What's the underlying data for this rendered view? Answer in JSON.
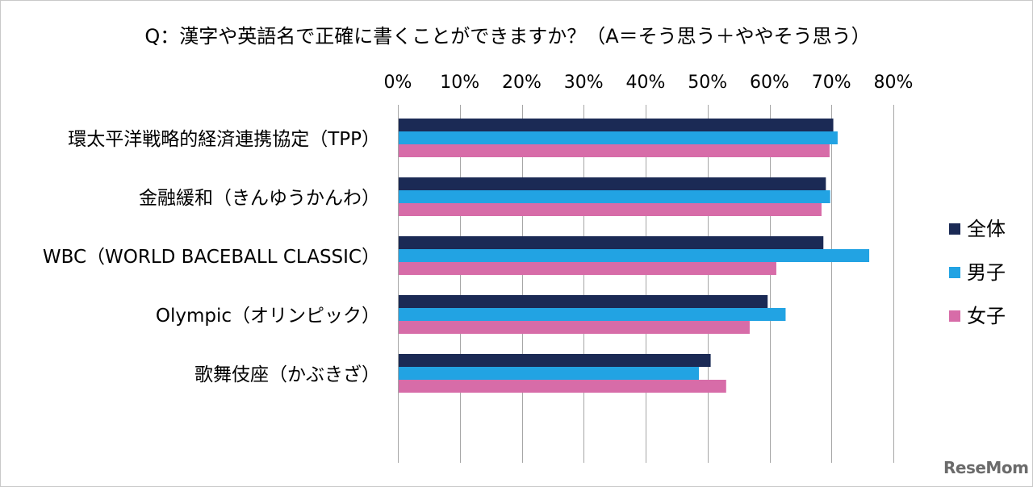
{
  "chart_data": {
    "type": "bar",
    "orientation": "horizontal",
    "title": "Q：漢字や英語名で正確に書くことができますか？（A＝そう思う＋ややそう思う）",
    "categories": [
      "環太平洋戦略的経済連携協定（TPP）",
      "金融緩和（きんゆうかんわ）",
      "WBC（WORLD BACEBALL CLASSIC）",
      "Olympic（オリンピック）",
      "歌舞伎座（かぶきざ）"
    ],
    "series": [
      {
        "name": "全体",
        "color": "#1b2a55",
        "values": [
          70.3,
          69.1,
          68.7,
          59.7,
          50.5
        ]
      },
      {
        "name": "男子",
        "color": "#22a3e3",
        "values": [
          71.0,
          69.8,
          76.1,
          62.6,
          48.6
        ]
      },
      {
        "name": "女子",
        "color": "#d76ca8",
        "values": [
          69.7,
          68.4,
          61.1,
          56.8,
          53.0
        ]
      }
    ],
    "xlim": [
      0,
      80
    ],
    "x_ticks": [
      "0%",
      "10%",
      "20%",
      "30%",
      "40%",
      "50%",
      "60%",
      "70%",
      "80%"
    ],
    "x_axis_position": "top",
    "grid": true,
    "legend_position": "right"
  },
  "watermark": "ReseMom"
}
